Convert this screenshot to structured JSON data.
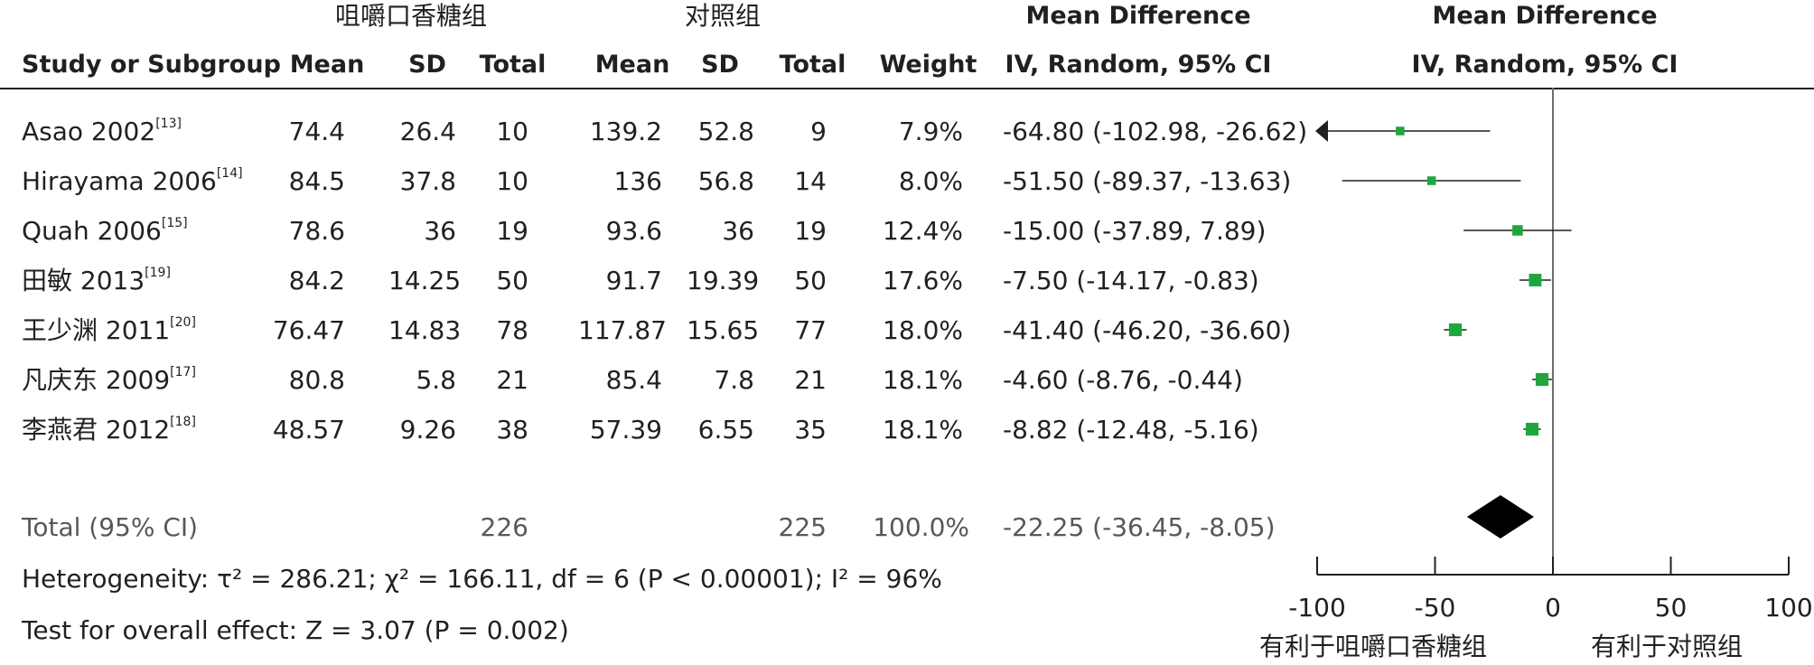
{
  "headers": {
    "group1": "咀嚼口香糖组",
    "group2": "对照组",
    "md_top_table": "Mean Difference",
    "md_top_plot": "Mean Difference",
    "study": "Study or Subgroup",
    "mean1": "Mean",
    "sd1": "SD",
    "total1": "Total",
    "mean2": "Mean",
    "sd2": "SD",
    "total2": "Total",
    "weight": "Weight",
    "ci_table": "IV, Random, 95% CI",
    "ci_plot": "IV, Random, 95% CI"
  },
  "studies": [
    {
      "name": "Asao 2002",
      "ref": "[13]",
      "mean1": "74.4",
      "sd1": "26.4",
      "total1": "10",
      "mean2": "139.2",
      "sd2": "52.8",
      "total2": "9",
      "weight": "7.9%",
      "ci": "-64.80 (-102.98, -26.62)"
    },
    {
      "name": "Hirayama 2006",
      "ref": "[14]",
      "mean1": "84.5",
      "sd1": "37.8",
      "total1": "10",
      "mean2": "136",
      "sd2": "56.8",
      "total2": "14",
      "weight": "8.0%",
      "ci": "-51.50 (-89.37, -13.63)"
    },
    {
      "name": "Quah 2006",
      "ref": "[15]",
      "mean1": "78.6",
      "sd1": "36",
      "total1": "19",
      "mean2": "93.6",
      "sd2": "36",
      "total2": "19",
      "weight": "12.4%",
      "ci": "-15.00 (-37.89, 7.89)"
    },
    {
      "name": "田敏 2013",
      "ref": "[19]",
      "mean1": "84.2",
      "sd1": "14.25",
      "total1": "50",
      "mean2": "91.7",
      "sd2": "19.39",
      "total2": "50",
      "weight": "17.6%",
      "ci": "-7.50 (-14.17, -0.83)"
    },
    {
      "name": "王少渊 2011",
      "ref": "[20]",
      "mean1": "76.47",
      "sd1": "14.83",
      "total1": "78",
      "mean2": "117.87",
      "sd2": "15.65",
      "total2": "77",
      "weight": "18.0%",
      "ci": "-41.40 (-46.20, -36.60)"
    },
    {
      "name": "凡庆东 2009",
      "ref": "[17]",
      "mean1": "80.8",
      "sd1": "5.8",
      "total1": "21",
      "mean2": "85.4",
      "sd2": "7.8",
      "total2": "21",
      "weight": "18.1%",
      "ci": "-4.60 (-8.76, -0.44)"
    },
    {
      "name": "李燕君 2012",
      "ref": "[18]",
      "mean1": "48.57",
      "sd1": "9.26",
      "total1": "38",
      "mean2": "57.39",
      "sd2": "6.55",
      "total2": "35",
      "weight": "18.1%",
      "ci": "-8.82 (-12.48, -5.16)"
    }
  ],
  "total": {
    "label": "Total (95% CI)",
    "total1": "226",
    "total2": "225",
    "weight": "100.0%",
    "ci": "-22.25 (-36.45, -8.05)"
  },
  "heterogeneity": "Heterogeneity: τ² = 286.21; χ² = 166.11, df = 6 (P < 0.00001); I² = 96%",
  "overall_effect": "Test for overall effect: Z = 3.07 (P = 0.002)",
  "favours_left": "有利于咀嚼口香糖组",
  "favours_right": "有利于对照组",
  "colors": {
    "square": "#1fa73d",
    "diamond": "#000000",
    "text": "#231f20",
    "grey_text": "#58585a"
  },
  "chart_data": {
    "type": "forest",
    "xlim": [
      -100,
      100
    ],
    "xticks": [
      "-100",
      "-50",
      "0",
      "50",
      "100"
    ],
    "points": [
      {
        "estimate": -64.8,
        "lower": -102.98,
        "upper": -26.62,
        "weight": 7.9
      },
      {
        "estimate": -51.5,
        "lower": -89.37,
        "upper": -13.63,
        "weight": 8.0
      },
      {
        "estimate": -15.0,
        "lower": -37.89,
        "upper": 7.89,
        "weight": 12.4
      },
      {
        "estimate": -7.5,
        "lower": -14.17,
        "upper": -0.83,
        "weight": 17.6
      },
      {
        "estimate": -41.4,
        "lower": -46.2,
        "upper": -36.6,
        "weight": 18.0
      },
      {
        "estimate": -4.6,
        "lower": -8.76,
        "upper": -0.44,
        "weight": 18.1
      },
      {
        "estimate": -8.82,
        "lower": -12.48,
        "upper": -5.16,
        "weight": 18.1
      }
    ],
    "pooled": {
      "estimate": -22.25,
      "lower": -36.45,
      "upper": -8.05
    }
  }
}
